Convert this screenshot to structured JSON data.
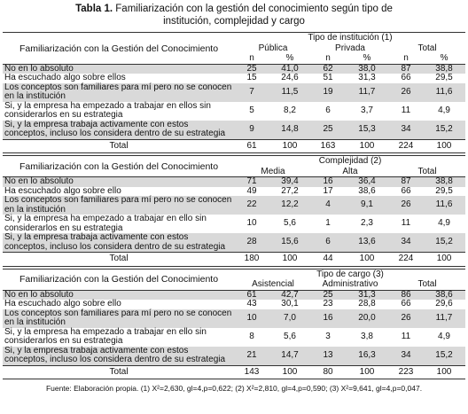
{
  "title": {
    "label": "Tabla 1.",
    "text": "Familiarización con la gestión del conocimiento según tipo de institución, complejidad y cargo"
  },
  "sections": [
    {
      "row_header": "Familiarización con la Gestión del Conocimiento",
      "group": "Tipo de institución (1)",
      "columns": [
        "Pública",
        "Privada",
        "Total"
      ],
      "subcolumns": [
        "n",
        "%",
        "n",
        "%",
        "n",
        "%"
      ],
      "rows": [
        {
          "label": "No en lo absoluto",
          "cells": [
            "25",
            "41,0",
            "62",
            "38,0",
            "87",
            "38,8"
          ]
        },
        {
          "label": "Ha escuchado algo sobre ellos",
          "cells": [
            "15",
            "24,6",
            "51",
            "31,3",
            "66",
            "29,5"
          ]
        },
        {
          "label": "Los conceptos son familiares para mí pero no se conocen en la institución",
          "cells": [
            "7",
            "11,5",
            "19",
            "11,7",
            "26",
            "11,6"
          ]
        },
        {
          "label": "Si, y la empresa ha empezado a trabajar en ellos sin considerarlos en su estrategia",
          "cells": [
            "5",
            "8,2",
            "6",
            "3,7",
            "11",
            "4,9"
          ]
        },
        {
          "label": "Si, y la empresa trabaja activamente con estos conceptos, incluso los considera dentro de su estrategia",
          "cells": [
            "9",
            "14,8",
            "25",
            "15,3",
            "34",
            "15,2"
          ]
        }
      ],
      "total": {
        "label": "Total",
        "cells": [
          "61",
          "100",
          "163",
          "100",
          "224",
          "100"
        ]
      }
    },
    {
      "row_header": "Familiarización con la Gestión del Conocimiento",
      "group": "Complejidad (2)",
      "columns": [
        "Media",
        "Alta",
        "Total"
      ],
      "rows": [
        {
          "label": "No en lo absoluto",
          "cells": [
            "71",
            "39,4",
            "16",
            "36,4",
            "87",
            "38,8"
          ]
        },
        {
          "label": "Ha escuchado algo sobre ello",
          "cells": [
            "49",
            "27,2",
            "17",
            "38,6",
            "66",
            "29,5"
          ]
        },
        {
          "label": "Los conceptos son familiares para mí pero no se conocen en la institución",
          "cells": [
            "22",
            "12,2",
            "4",
            "9,1",
            "26",
            "11,6"
          ]
        },
        {
          "label": "Si, y la empresa ha empezado a trabajar en ello sin considerarlos en su estrategia",
          "cells": [
            "10",
            "5,6",
            "1",
            "2,3",
            "11",
            "4,9"
          ]
        },
        {
          "label": "Si, y la empresa trabaja activamente con estos conceptos, incluso los considera dentro de su estrategia",
          "cells": [
            "28",
            "15,6",
            "6",
            "13,6",
            "34",
            "15,2"
          ]
        }
      ],
      "total": {
        "label": "Total",
        "cells": [
          "180",
          "100",
          "44",
          "100",
          "224",
          "100"
        ]
      }
    },
    {
      "row_header": "Familiarización con la Gestión del Conocimiento",
      "group": "Tipo de cargo (3)",
      "columns": [
        "Asistencial",
        "Administrativo",
        "Total"
      ],
      "rows": [
        {
          "label": "No en lo absoluto",
          "cells": [
            "61",
            "42,7",
            "25",
            "31,3",
            "86",
            "38,6"
          ]
        },
        {
          "label": "Ha escuchado algo sobre ello",
          "cells": [
            "43",
            "30,1",
            "23",
            "28,8",
            "66",
            "29,6"
          ]
        },
        {
          "label": "Los conceptos son familiares para mí pero no se conocen en la institución",
          "cells": [
            "10",
            "7,0",
            "16",
            "20,0",
            "26",
            "11,7"
          ]
        },
        {
          "label": "Si, y la empresa ha empezado a trabajar en ello sin considerarlos en su estrategia",
          "cells": [
            "8",
            "5,6",
            "3",
            "3,8",
            "11",
            "4,9"
          ]
        },
        {
          "label": "Si, y la empresa trabaja activamente con estos conceptos, incluso los considera dentro de su estrategia",
          "cells": [
            "21",
            "14,7",
            "13",
            "16,3",
            "34",
            "15,2"
          ]
        }
      ],
      "total": {
        "label": "Total",
        "cells": [
          "143",
          "100",
          "80",
          "100",
          "223",
          "100"
        ]
      }
    }
  ],
  "footer": "Fuente: Elaboración propia. (1) X²=2,630, gl=4,p=0,622; (2) X²=2,810, gl=4,p=0,590; (3) X²=9,641, gl=4,p=0,047."
}
